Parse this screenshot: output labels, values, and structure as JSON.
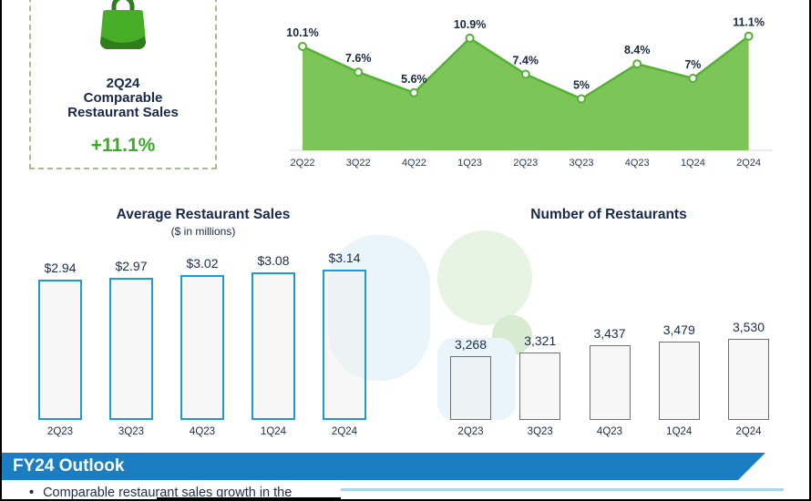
{
  "highlight_card": {
    "lines": [
      "2Q24",
      "Comparable",
      "Restaurant Sales"
    ],
    "value": "+11.1%",
    "accent_color": "#3aaa28",
    "icon": "shopping-bag-icon",
    "border_color": "#a5bd8e"
  },
  "chart_data": [
    {
      "type": "area",
      "categories": [
        "2Q22",
        "3Q22",
        "4Q22",
        "1Q23",
        "2Q23",
        "3Q23",
        "4Q23",
        "1Q24",
        "2Q24"
      ],
      "values": [
        10.1,
        7.6,
        5.6,
        10.9,
        7.4,
        5,
        8.4,
        7,
        11.1
      ],
      "point_labels": [
        "10.1%",
        "7.6%",
        "5.6%",
        "10.9%",
        "7.4%",
        "5%",
        "8.4%",
        "7%",
        "11.1%"
      ],
      "ylim": [
        0,
        12.4
      ],
      "grid": false,
      "legend": "none",
      "colors": {
        "area_fill": "#7ec559",
        "line": "#53b234",
        "point_fill": "#ffffff",
        "label": "#1a2740",
        "axis": "#25395c",
        "baseline": "#d9d9d9"
      }
    },
    {
      "type": "bar",
      "title": "Average Restaurant Sales",
      "subtitle": "($ in millions)",
      "categories": [
        "2Q23",
        "3Q23",
        "4Q23",
        "1Q24",
        "2Q24"
      ],
      "values": [
        2.94,
        2.97,
        3.02,
        3.08,
        3.14
      ],
      "value_labels": [
        "$2.94",
        "$2.97",
        "$3.02",
        "$3.08",
        "$3.14"
      ],
      "ylim": [
        0,
        3.33
      ],
      "grid": false,
      "legend": "none",
      "colors": {
        "bar_fill": "rgba(240,240,240,0.55)",
        "bar_border": "#1e9ad6",
        "label": "#1d2c49"
      }
    },
    {
      "type": "bar",
      "title": "Number of Restaurants",
      "categories": [
        "2Q23",
        "3Q23",
        "4Q23",
        "1Q24",
        "2Q24"
      ],
      "values": [
        3268,
        3321,
        3437,
        3479,
        3530
      ],
      "value_labels": [
        "3,268",
        "3,321",
        "3,437",
        "3,479",
        "3,530"
      ],
      "ylim": [
        2350,
        3800
      ],
      "grid": false,
      "legend": "none",
      "colors": {
        "bar_fill": "rgba(240,240,240,0.55)",
        "bar_border": "#6f6f6f",
        "label": "#1d2c49"
      }
    }
  ],
  "outlook": {
    "title": "FY24 Outlook",
    "banner_color": "#1b7ec2",
    "bullets": [
      "Comparable restaurant sales growth in the"
    ]
  },
  "watermark": {
    "icon": "brand-logo-watermark",
    "colors": [
      "#e9f4fb",
      "#e7f4e3",
      "#d6ebd1"
    ]
  }
}
